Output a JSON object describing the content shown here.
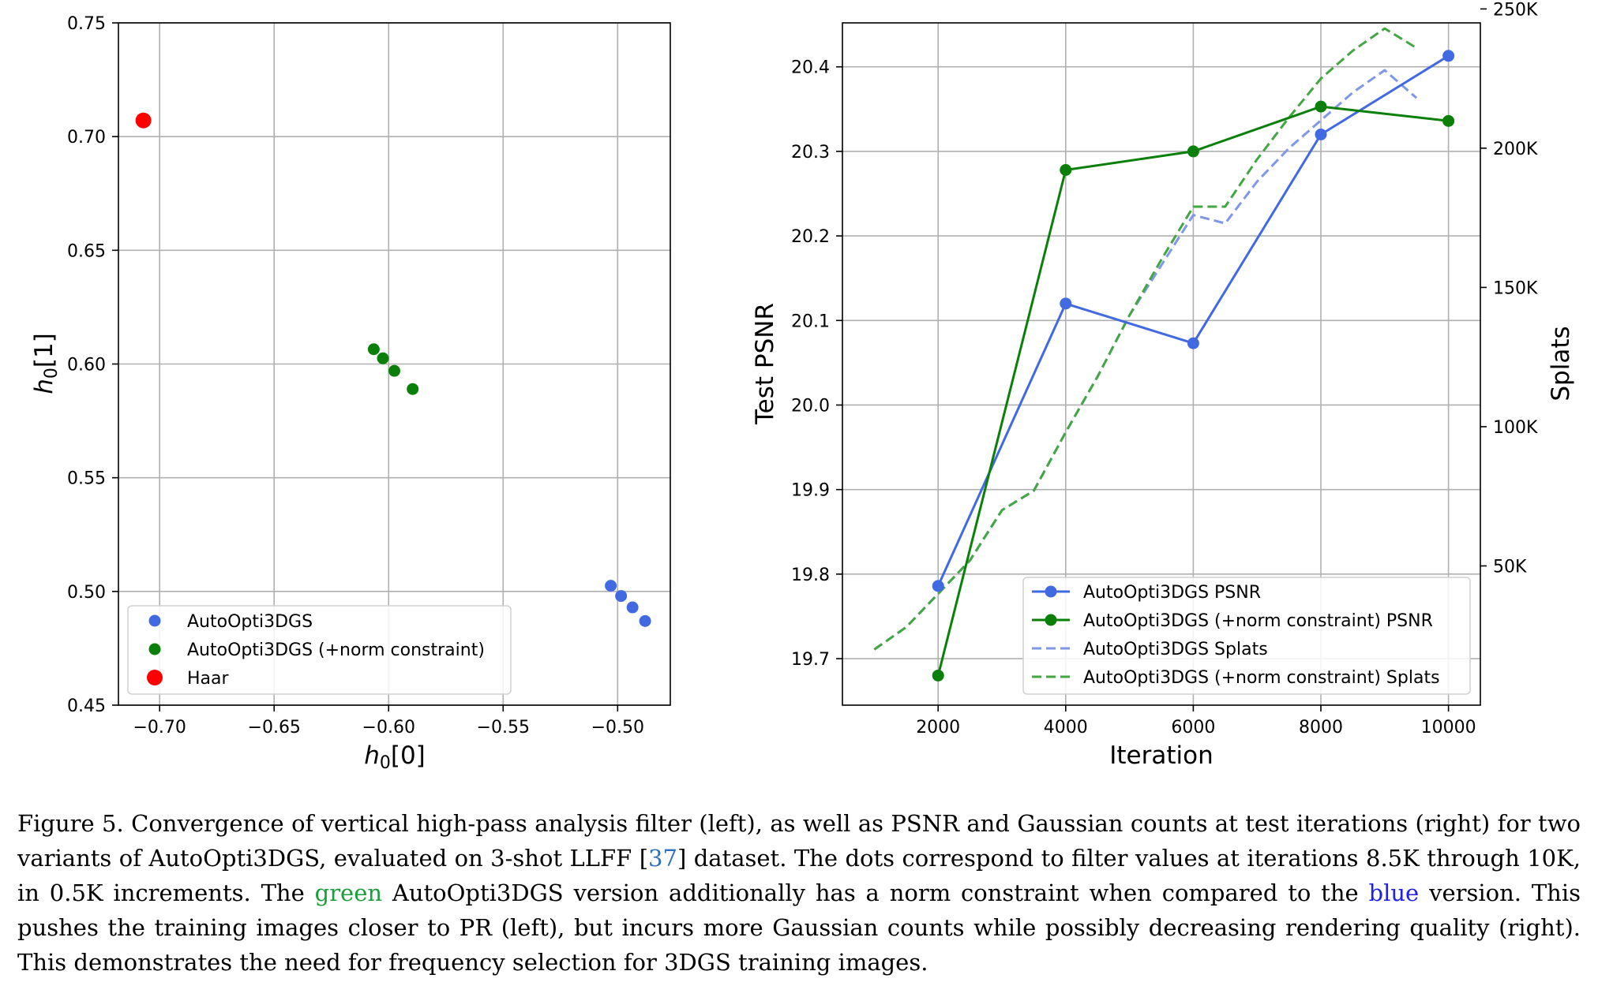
{
  "chart_data": [
    {
      "type": "scatter",
      "title": "",
      "xlabel": "h0[0]",
      "ylabel": "h0[1]",
      "xlim": [
        -0.718,
        -0.477
      ],
      "ylim": [
        0.45,
        0.75
      ],
      "xticks": [
        -0.7,
        -0.65,
        -0.6,
        -0.55,
        -0.5
      ],
      "xtick_labels": [
        "−0.70",
        "−0.65",
        "−0.60",
        "−0.55",
        "−0.50"
      ],
      "yticks": [
        0.45,
        0.5,
        0.55,
        0.6,
        0.65,
        0.7,
        0.75
      ],
      "ytick_labels": [
        "0.45",
        "0.50",
        "0.55",
        "0.60",
        "0.65",
        "0.70",
        "0.75"
      ],
      "grid": true,
      "legend_position": "lower-left",
      "series": [
        {
          "name": "AutoOpti3DGS",
          "color": "#4169e1",
          "points": [
            [
              -0.503,
              0.5025
            ],
            [
              -0.4985,
              0.498
            ],
            [
              -0.4935,
              0.493
            ],
            [
              -0.488,
              0.487
            ]
          ]
        },
        {
          "name": "AutoOpti3DGS (+norm constraint)",
          "color": "#0a800a",
          "points": [
            [
              -0.6065,
              0.6065
            ],
            [
              -0.6025,
              0.6025
            ],
            [
              -0.5975,
              0.597
            ],
            [
              -0.5895,
              0.589
            ]
          ]
        },
        {
          "name": "Haar",
          "color": "#ff0000",
          "points": [
            [
              -0.7071,
              0.7071
            ]
          ]
        }
      ]
    },
    {
      "type": "line",
      "title": "",
      "xlabel": "Iteration",
      "ylabel": "Test PSNR",
      "y2label": "Splats",
      "xlim": [
        500,
        10500
      ],
      "ylim": [
        19.645,
        20.452
      ],
      "y2lim": [
        0,
        245000
      ],
      "xticks": [
        2000,
        4000,
        6000,
        8000,
        10000
      ],
      "xtick_labels": [
        "2000",
        "4000",
        "6000",
        "8000",
        "10000"
      ],
      "yticks": [
        19.7,
        19.8,
        19.9,
        20.0,
        20.1,
        20.2,
        20.3,
        20.4
      ],
      "ytick_labels": [
        "19.7",
        "19.8",
        "19.9",
        "20.0",
        "20.1",
        "20.2",
        "20.3",
        "20.4"
      ],
      "y2ticks": [
        50000,
        100000,
        150000,
        200000,
        250000
      ],
      "y2tick_labels": [
        "50K",
        "100K",
        "150K",
        "200K",
        "250K"
      ],
      "grid": true,
      "legend_position": "lower-right",
      "series": [
        {
          "name": "AutoOpti3DGS PSNR",
          "axis": "left",
          "style": "solid-marker",
          "color": "#4169e1",
          "x": [
            2000,
            4000,
            6000,
            8000,
            10000
          ],
          "y": [
            19.786,
            20.12,
            20.073,
            20.32,
            20.413
          ]
        },
        {
          "name": "AutoOpti3DGS (+norm constraint) PSNR",
          "axis": "left",
          "style": "solid-marker",
          "color": "#0a800a",
          "x": [
            2000,
            4000,
            6000,
            8000,
            10000
          ],
          "y": [
            19.68,
            20.278,
            20.3,
            20.353,
            20.336
          ]
        },
        {
          "name": "AutoOpti3DGS Splats",
          "axis": "right",
          "style": "dashed",
          "color": "#7e97e8",
          "x": [
            1000,
            1500,
            2000,
            2500,
            3000,
            3500,
            4000,
            4500,
            5000,
            5500,
            6000,
            6500,
            7000,
            7500,
            8000,
            8500,
            9000,
            9500
          ],
          "y": [
            20000,
            28000,
            40000,
            52000,
            70000,
            77000,
            98000,
            118000,
            140000,
            158000,
            176000,
            173000,
            188000,
            200000,
            210000,
            220000,
            228000,
            218000
          ]
        },
        {
          "name": "AutoOpti3DGS (+norm constraint) Splats",
          "axis": "right",
          "style": "dashed",
          "color": "#42a642",
          "x": [
            1000,
            1500,
            2000,
            2500,
            3000,
            3500,
            4000,
            4500,
            5000,
            5500,
            6000,
            6500,
            7000,
            7500,
            8000,
            8500,
            9000,
            9500
          ],
          "y": [
            20000,
            28000,
            40000,
            52000,
            70000,
            77000,
            98000,
            118000,
            140000,
            160000,
            179000,
            179000,
            196000,
            211000,
            225000,
            235000,
            243000,
            236000
          ]
        }
      ]
    }
  ],
  "caption": {
    "prefix": "Figure 5. Convergence of vertical high-pass analysis filter (left), as well as PSNR and Gaussian counts at test iterations (right) for two variants of AutoOpti3DGS, evaluated on 3-shot LLFF [",
    "citation": "37",
    "part2": "] dataset. The dots correspond to filter values at iterations 8.5K through 10K, in 0.5K increments. The ",
    "green_word": "green",
    "part3": " AutoOpti3DGS version additionally has a norm constraint when compared to the ",
    "blue_word": "blue",
    "part4": " version. This pushes the training images closer to PR (left), but incurs more Gaussian counts while possibly decreasing rendering quality (right). This demonstrates the need for frequency selection for 3DGS training images."
  }
}
